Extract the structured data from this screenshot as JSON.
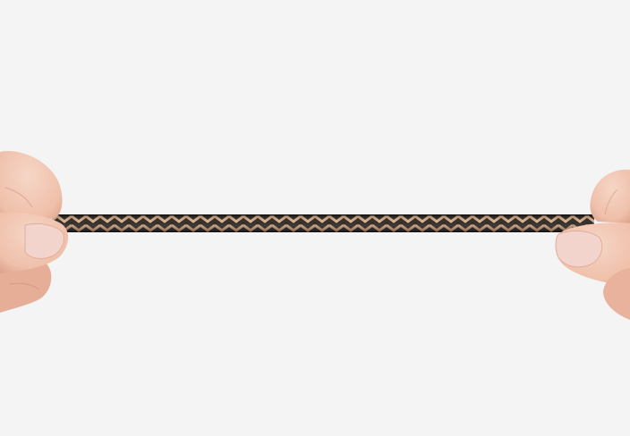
{
  "scene": {
    "background_color": "#f4f4f4",
    "subject": "braided-cable",
    "colors": {
      "cable_dark": "#1c1814",
      "cable_light": "#d9ab82",
      "cable_mid": "#b88a63",
      "skin": "#efc2ad",
      "skin_shadow": "#d99b86",
      "nail": "#f3d4cc"
    }
  }
}
